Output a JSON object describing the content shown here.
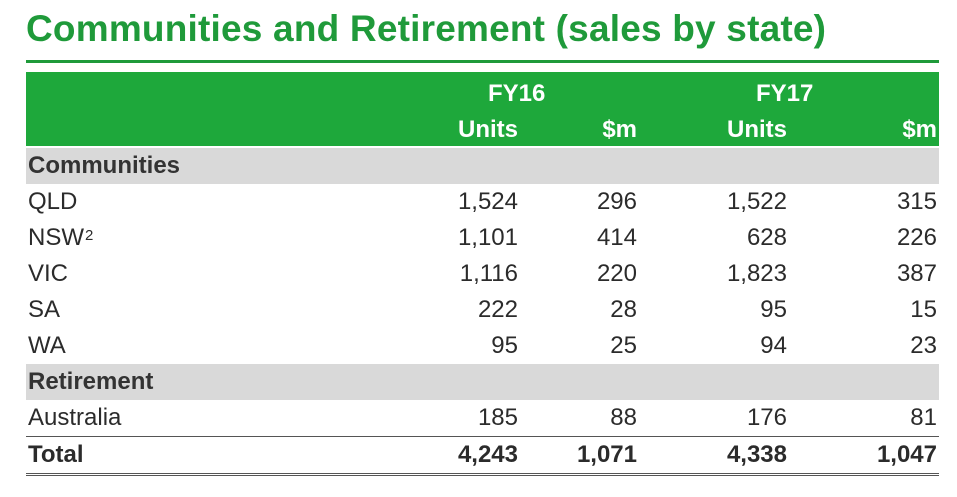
{
  "title": "Communities and Retirement (sales by state)",
  "header": {
    "periods": [
      "FY16",
      "FY17"
    ],
    "col_units": "Units",
    "col_money": "$m"
  },
  "sections": [
    {
      "name": "Communities",
      "rows": [
        {
          "label": "QLD",
          "sup": "",
          "fy16_units": "1,524",
          "fy16_m": "296",
          "fy17_units": "1,522",
          "fy17_m": "315"
        },
        {
          "label": "NSW",
          "sup": "2",
          "fy16_units": "1,101",
          "fy16_m": "414",
          "fy17_units": "628",
          "fy17_m": "226"
        },
        {
          "label": "VIC",
          "sup": "",
          "fy16_units": "1,116",
          "fy16_m": "220",
          "fy17_units": "1,823",
          "fy17_m": "387"
        },
        {
          "label": "SA",
          "sup": "",
          "fy16_units": "222",
          "fy16_m": "28",
          "fy17_units": "95",
          "fy17_m": "15"
        },
        {
          "label": "WA",
          "sup": "",
          "fy16_units": "95",
          "fy16_m": "25",
          "fy17_units": "94",
          "fy17_m": "23"
        }
      ]
    },
    {
      "name": "Retirement",
      "rows": [
        {
          "label": "Australia",
          "sup": "",
          "fy16_units": "185",
          "fy16_m": "88",
          "fy17_units": "176",
          "fy17_m": "81"
        }
      ]
    }
  ],
  "total": {
    "label": "Total",
    "fy16_units": "4,243",
    "fy16_m": "1,071",
    "fy17_units": "4,338",
    "fy17_m": "1,047"
  },
  "colors": {
    "accent": "#1ea83b",
    "title": "#1f9a3a",
    "section_bg": "#d9d9d9"
  }
}
